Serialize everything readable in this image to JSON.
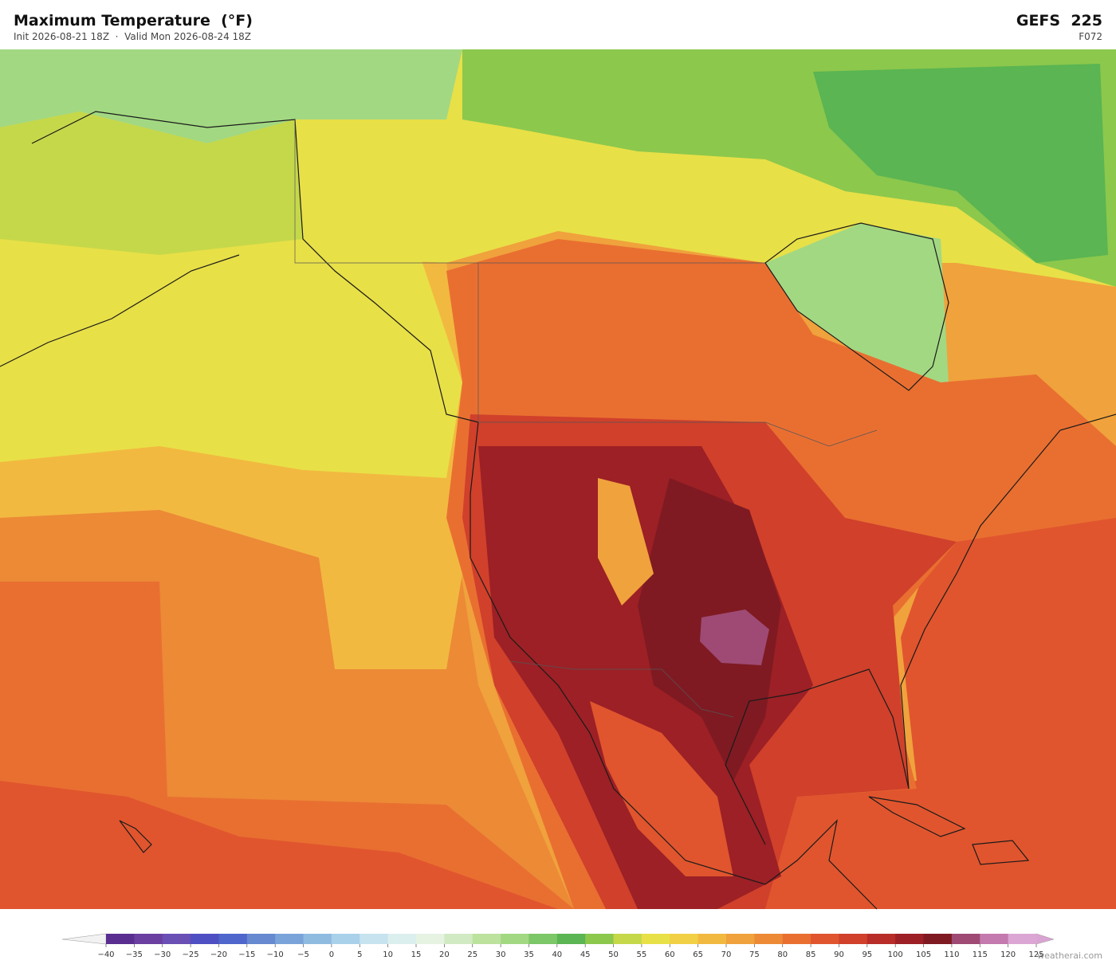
{
  "header": {
    "title": "Maximum Temperature  (°F)",
    "subtitle": "Init 2026-08-21 18Z  ·  Valid Mon 2026-08-24 18Z",
    "model": "GEFS  225",
    "forecast_hour": "F072"
  },
  "colorbar": {
    "ticks": [
      {
        "value": -40,
        "label": "−40"
      },
      {
        "value": -35,
        "label": "−35"
      },
      {
        "value": -30,
        "label": "−30"
      },
      {
        "value": -25,
        "label": "−25"
      },
      {
        "value": -20,
        "label": "−20"
      },
      {
        "value": -15,
        "label": "−15"
      },
      {
        "value": -10,
        "label": "−10"
      },
      {
        "value": -5,
        "label": "−5"
      },
      0,
      5,
      10,
      15,
      20,
      25,
      30,
      35,
      40,
      45,
      50,
      55,
      60,
      65,
      70,
      75,
      80,
      85,
      90,
      95,
      100,
      105,
      110,
      115,
      120,
      125
    ],
    "colors": [
      "#5a2d91",
      "#6b3fa0",
      "#6a4fb5",
      "#4f4fc4",
      "#4f66cc",
      "#6689d0",
      "#7aa3da",
      "#8fbbe0",
      "#a9d1ea",
      "#c6e3ef",
      "#dcefef",
      "#e6f3e2",
      "#d1eac3",
      "#bce29e",
      "#a2d882",
      "#7cc767",
      "#5ab552",
      "#8cc84c",
      "#c5d84a",
      "#e8e047",
      "#f1d046",
      "#f2b940",
      "#f0a23c",
      "#ec8a36",
      "#e96f31",
      "#e0552e",
      "#d0402b",
      "#b82d28",
      "#9c2025",
      "#7f1a22",
      "#9e4a74",
      "#c47aae",
      "#dba6d4"
    ],
    "under_color": "#f2f2f2",
    "over_color": "#d9a3d2"
  },
  "watermark": "weatherai.com"
}
